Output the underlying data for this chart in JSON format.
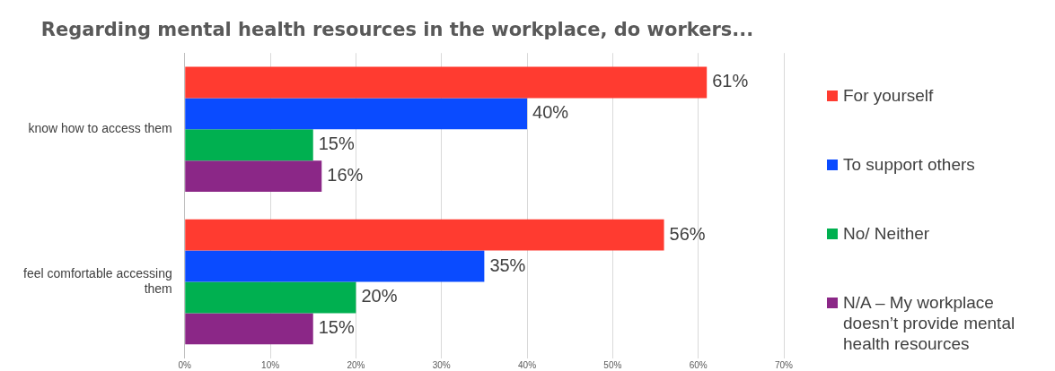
{
  "chart_data": {
    "type": "bar",
    "orientation": "horizontal",
    "title": "Regarding mental health resources in the workplace, do workers...",
    "categories": [
      "know how to access them",
      "feel comfortable accessing them"
    ],
    "series": [
      {
        "name": "For yourself",
        "color": "#ff3b30",
        "values": [
          61,
          56
        ],
        "value_labels": [
          "61%",
          "56%"
        ]
      },
      {
        "name": "To support others",
        "color": "#0a4bff",
        "values": [
          40,
          35
        ],
        "value_labels": [
          "40%",
          "35%"
        ]
      },
      {
        "name": "No/ Neither",
        "color": "#00b050",
        "values": [
          15,
          20
        ],
        "value_labels": [
          "15%",
          "20%"
        ]
      },
      {
        "name": "N/A – My workplace doesn’t provide mental health resources",
        "color": "#8b2787",
        "values": [
          16,
          15
        ],
        "value_labels": [
          "16%",
          "15%"
        ]
      }
    ],
    "xlim": [
      0,
      70
    ],
    "xticks": [
      {
        "value": 0,
        "label": "0%"
      },
      {
        "value": 10,
        "label": "10%"
      },
      {
        "value": 20,
        "label": "20%"
      },
      {
        "value": 30,
        "label": "30%"
      },
      {
        "value": 40,
        "label": "40%"
      },
      {
        "value": 50,
        "label": "50%"
      },
      {
        "value": 60,
        "label": "60%"
      },
      {
        "value": 70,
        "label": "70%"
      }
    ],
    "grid": "x",
    "legend": "right"
  }
}
